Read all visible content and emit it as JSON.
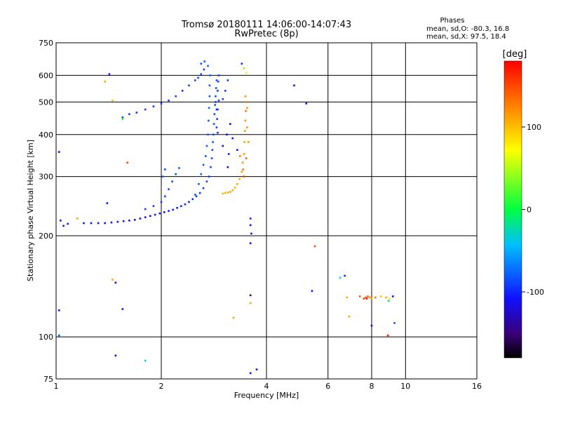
{
  "chart_data": {
    "type": "scatter",
    "title": "Tromsø 20180111 14:06:00-14:07:43",
    "subtitle": "RwPretec (8p)",
    "xlabel": "Frequency [MHz]",
    "ylabel": "Stationary phase Virtual Height [km]",
    "x_scale": "log",
    "y_scale": "log",
    "xlim": [
      1,
      16
    ],
    "ylim": [
      75,
      750
    ],
    "grid": true,
    "x_ticks": [
      1,
      2,
      4,
      6,
      8,
      10,
      16
    ],
    "x_tick_labels": [
      "1",
      "2",
      "4",
      "6",
      "8",
      "10",
      "16"
    ],
    "y_ticks": [
      75,
      100,
      200,
      300,
      400,
      500,
      600,
      750
    ],
    "y_tick_labels": [
      "75",
      "100",
      "200",
      "300",
      "400",
      "500",
      "600",
      "750"
    ],
    "stats_box": {
      "heading": "Phases",
      "line_o": "mean, sd,O: -80.3, 16.8",
      "line_x": "mean, sd,X: 97.5, 18.4"
    },
    "colorbar": {
      "label": "[deg]",
      "range": [
        -180,
        180
      ],
      "ticks": [
        100,
        0,
        -100
      ],
      "tick_labels": [
        "100",
        "0",
        "-100"
      ]
    },
    "series": [
      {
        "values": [
          [
            1.2,
            218,
            -110
          ],
          [
            1.26,
            218,
            -112
          ],
          [
            1.32,
            218,
            -110
          ],
          [
            1.38,
            218,
            -108
          ],
          [
            1.44,
            219,
            -112
          ],
          [
            1.5,
            220,
            -110
          ],
          [
            1.56,
            221,
            -108
          ],
          [
            1.62,
            222,
            -110
          ],
          [
            1.68,
            223,
            -112
          ],
          [
            1.74,
            225,
            -110
          ],
          [
            1.8,
            227,
            -108
          ],
          [
            1.86,
            229,
            -110
          ],
          [
            1.92,
            231,
            -108
          ],
          [
            1.98,
            233,
            -106
          ],
          [
            2.04,
            235,
            -108
          ],
          [
            2.1,
            237,
            -104
          ],
          [
            2.16,
            239,
            -106
          ],
          [
            2.22,
            242,
            -104
          ],
          [
            2.28,
            245,
            -102
          ],
          [
            2.34,
            248,
            -100
          ],
          [
            2.4,
            252,
            -100
          ],
          [
            2.46,
            257,
            -98
          ],
          [
            2.52,
            262,
            -96
          ],
          [
            2.58,
            268,
            -94
          ],
          [
            2.64,
            277,
            -92
          ],
          [
            2.7,
            290,
            -90
          ],
          [
            2.74,
            300,
            -88
          ],
          [
            2.77,
            320,
            -88
          ],
          [
            2.79,
            340,
            -86
          ],
          [
            2.8,
            360,
            -86
          ],
          [
            2.81,
            380,
            -84
          ],
          [
            2.82,
            400,
            -86
          ],
          [
            2.83,
            430,
            -84
          ],
          [
            2.84,
            460,
            -86
          ],
          [
            2.85,
            490,
            -84
          ],
          [
            2.86,
            520,
            -86
          ],
          [
            2.87,
            550,
            -84
          ],
          [
            2.88,
            580,
            -88
          ],
          [
            2.88,
            420,
            -90
          ],
          [
            2.89,
            445,
            -95
          ],
          [
            2.9,
            475,
            -95
          ],
          [
            2.92,
            505,
            -92
          ],
          [
            2.9,
            540,
            -90
          ],
          [
            2.91,
            575,
            -88
          ],
          [
            2.92,
            600,
            -90
          ],
          [
            2.86,
            500,
            -94
          ],
          [
            2.9,
            405,
            -96
          ],
          [
            2.88,
            475,
            -96
          ],
          [
            2.5,
            265,
            -80
          ],
          [
            2.56,
            285,
            -80
          ],
          [
            2.6,
            305,
            -80
          ],
          [
            2.64,
            325,
            -80
          ],
          [
            2.68,
            345,
            -80
          ],
          [
            2.7,
            370,
            -82
          ],
          [
            2.72,
            400,
            -80
          ],
          [
            2.73,
            440,
            -80
          ],
          [
            2.74,
            480,
            -80
          ],
          [
            2.75,
            520,
            -80
          ],
          [
            2.75,
            560,
            -80
          ],
          [
            2.76,
            600,
            -78
          ],
          [
            2.72,
            640,
            -82
          ],
          [
            2.66,
            660,
            -80
          ],
          [
            2.6,
            650,
            -84
          ],
          [
            1.55,
            450,
            -92
          ],
          [
            1.62,
            460,
            -90
          ],
          [
            1.7,
            465,
            -95
          ],
          [
            1.8,
            475,
            -94
          ],
          [
            1.9,
            485,
            -92
          ],
          [
            2.0,
            495,
            -96
          ],
          [
            2.1,
            505,
            -92
          ],
          [
            2.2,
            520,
            -90
          ],
          [
            2.3,
            540,
            -92
          ],
          [
            2.4,
            560,
            -90
          ],
          [
            2.5,
            580,
            -88
          ],
          [
            2.6,
            605,
            -86
          ],
          [
            2.65,
            625,
            -90
          ],
          [
            2.55,
            590,
            -90
          ],
          [
            1.8,
            240,
            -92
          ],
          [
            1.9,
            245,
            -94
          ],
          [
            2.0,
            252,
            -92
          ],
          [
            2.05,
            262,
            -90
          ],
          [
            2.1,
            275,
            -88
          ],
          [
            2.15,
            290,
            -86
          ],
          [
            2.2,
            305,
            -84
          ],
          [
            2.25,
            318,
            -84
          ],
          [
            3.0,
            510,
            -90
          ],
          [
            3.05,
            540,
            -92
          ],
          [
            3.1,
            580,
            -92
          ],
          [
            3.0,
            370,
            -110
          ],
          [
            3.08,
            400,
            -115
          ],
          [
            3.15,
            430,
            -112
          ],
          [
            3.2,
            390,
            -108
          ],
          [
            3.3,
            360,
            -115
          ],
          [
            3.1,
            320,
            -118
          ],
          [
            3.12,
            350,
            -108
          ],
          [
            3.4,
            650,
            -98
          ],
          [
            3.45,
            630,
            100
          ],
          [
            3.5,
            610,
            60
          ],
          [
            3.0,
            267,
            105
          ],
          [
            3.05,
            268,
            110
          ],
          [
            3.1,
            269,
            108
          ],
          [
            3.15,
            270,
            112
          ],
          [
            3.2,
            273,
            110
          ],
          [
            3.25,
            278,
            108
          ],
          [
            3.3,
            285,
            110
          ],
          [
            3.35,
            295,
            112
          ],
          [
            3.4,
            310,
            115
          ],
          [
            3.42,
            330,
            120
          ],
          [
            3.45,
            350,
            118
          ],
          [
            3.46,
            380,
            115
          ],
          [
            3.47,
            410,
            118
          ],
          [
            3.48,
            440,
            120
          ],
          [
            3.49,
            470,
            130
          ],
          [
            3.5,
            500,
            128
          ],
          [
            3.48,
            520,
            120
          ],
          [
            3.52,
            480,
            120
          ],
          [
            3.55,
            380,
            118
          ],
          [
            3.5,
            340,
            140
          ],
          [
            3.45,
            300,
            150
          ],
          [
            3.52,
            420,
            116
          ],
          [
            3.36,
            345,
            125
          ],
          [
            3.43,
            315,
            135
          ],
          [
            1.03,
            222,
            -110
          ],
          [
            1.05,
            214,
            -108
          ],
          [
            1.08,
            217,
            -112
          ],
          [
            1.02,
            355,
            -120
          ],
          [
            1.42,
            605,
            -110
          ],
          [
            1.38,
            575,
            110
          ],
          [
            1.45,
            505,
            100
          ],
          [
            1.6,
            330,
            150
          ],
          [
            1.4,
            250,
            -110
          ],
          [
            1.15,
            225,
            110
          ],
          [
            1.55,
            445,
            10
          ],
          [
            1.02,
            120,
            -110
          ],
          [
            1.02,
            101,
            -80
          ],
          [
            1.45,
            148,
            110
          ],
          [
            1.48,
            145,
            -130
          ],
          [
            1.55,
            121,
            -110
          ],
          [
            1.48,
            88,
            -120
          ],
          [
            1.8,
            85,
            -30
          ],
          [
            2.02,
            300,
            -80
          ],
          [
            2.05,
            315,
            -90
          ],
          [
            3.6,
            225,
            -100
          ],
          [
            3.6,
            215,
            -120
          ],
          [
            3.62,
            203,
            -110
          ],
          [
            3.6,
            190,
            -120
          ],
          [
            3.6,
            133,
            -150
          ],
          [
            3.6,
            126,
            110
          ],
          [
            3.6,
            78,
            -110
          ],
          [
            3.75,
            80,
            -120
          ],
          [
            3.22,
            114,
            110
          ],
          [
            4.8,
            560,
            -110
          ],
          [
            5.2,
            495,
            -120
          ],
          [
            5.5,
            186,
            150
          ],
          [
            5.4,
            137,
            -110
          ],
          [
            6.5,
            150,
            -30
          ],
          [
            6.7,
            152,
            -100
          ],
          [
            6.8,
            131,
            110
          ],
          [
            6.9,
            115,
            110
          ],
          [
            7.4,
            132,
            140
          ],
          [
            7.6,
            130,
            160
          ],
          [
            7.7,
            131,
            150
          ],
          [
            7.75,
            130,
            170
          ],
          [
            7.8,
            132,
            140
          ],
          [
            7.9,
            131,
            120
          ],
          [
            8.0,
            130,
            110
          ],
          [
            8.2,
            131,
            130
          ],
          [
            8.5,
            132,
            100
          ],
          [
            8.8,
            131,
            110
          ],
          [
            9.0,
            130,
            80
          ],
          [
            9.2,
            132,
            -110
          ],
          [
            8.0,
            108,
            -110
          ],
          [
            9.3,
            110,
            -80
          ],
          [
            8.9,
            101,
            170
          ],
          [
            8.95,
            128,
            -30
          ]
        ]
      }
    ]
  }
}
